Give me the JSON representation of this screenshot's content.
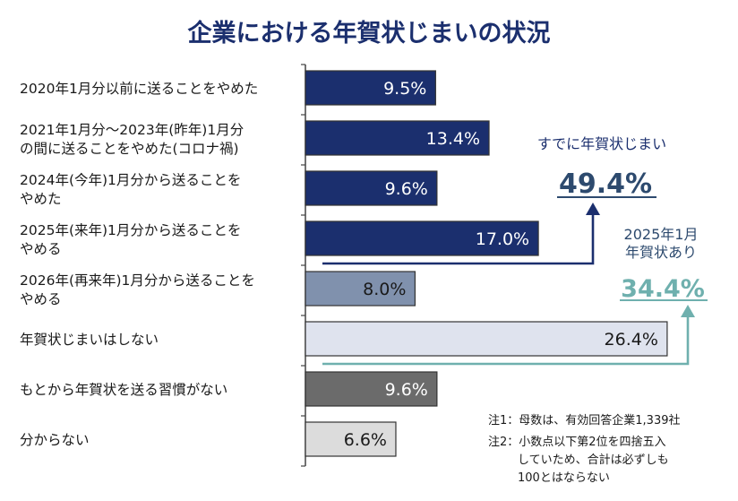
{
  "chart_data": {
    "type": "bar",
    "orientation": "horizontal",
    "title": "企業における年賀状じまいの状況",
    "unit": "%",
    "xlim": [
      0,
      30
    ],
    "categories": [
      {
        "lines": [
          "2020年1月分以前に送ることをやめた"
        ]
      },
      {
        "lines": [
          "2021年1月分～2023年(昨年)1月分",
          "の間に送ることをやめた(コロナ禍)"
        ]
      },
      {
        "lines": [
          "2024年(今年)1月分から送ることを",
          "やめた"
        ]
      },
      {
        "lines": [
          "2025年(来年)1月分から送ることを",
          "やめる"
        ]
      },
      {
        "lines": [
          "2026年(再来年)1月分から送ることを",
          "やめる"
        ]
      },
      {
        "lines": [
          "年賀状じまいはしない"
        ]
      },
      {
        "lines": [
          "もとから年賀状を送る習慣がない"
        ]
      },
      {
        "lines": [
          "分からない"
        ]
      }
    ],
    "values": [
      9.5,
      13.4,
      9.6,
      17.0,
      8.0,
      26.4,
      9.6,
      6.6
    ],
    "value_labels": [
      "9.5%",
      "13.4%",
      "9.6%",
      "17.0%",
      "8.0%",
      "26.4%",
      "9.6%",
      "6.6%"
    ],
    "bar_colors": [
      "#1b2f6e",
      "#1b2f6e",
      "#1b2f6e",
      "#1b2f6e",
      "#8091ad",
      "#dfe3ee",
      "#6b6b6b",
      "#dcdcdc"
    ],
    "label_colors": [
      "#ffffff",
      "#ffffff",
      "#ffffff",
      "#ffffff",
      "#1a1a1a",
      "#1a1a1a",
      "#ffffff",
      "#1a1a1a"
    ]
  },
  "callouts": {
    "already": {
      "label": "すでに年賀状じまい",
      "value": "49.4%",
      "color": "#2d4a6e"
    },
    "has2025": {
      "label_lines": [
        "2025年1月",
        "年賀状あり"
      ],
      "value": "34.4%",
      "color": "#6fb0ae"
    }
  },
  "notes": [
    "注1：母数は、有効回答企業1,339社",
    "注2：小数点以下第2位を四捨五入",
    "していため、合計は必ずしも",
    "100とはならない"
  ],
  "colors": {
    "title": "#1b2f6e",
    "arrow_dark": "#1b2f6e",
    "arrow_teal": "#6fb0ae",
    "axis": "#444444"
  }
}
